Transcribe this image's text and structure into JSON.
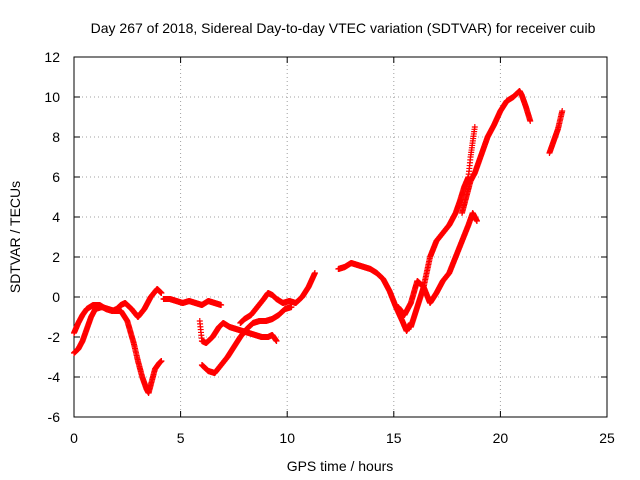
{
  "chart_data": {
    "type": "scatter",
    "title": "Day 267 of 2018, Sidereal Day-to-day VTEC variation (SDTVAR) for receiver cuib",
    "xlabel": "GPS time / hours",
    "ylabel": "SDTVAR / TECUs",
    "xlim": [
      0,
      25
    ],
    "ylim": [
      -6,
      12
    ],
    "xticks": [
      0,
      5,
      10,
      15,
      20,
      25
    ],
    "yticks": [
      -6,
      -4,
      -2,
      0,
      2,
      4,
      6,
      8,
      10,
      12
    ],
    "grid": true,
    "marker": "+",
    "color": "#ff0000",
    "series": [
      {
        "name": "seg1",
        "x": [
          0.0,
          0.2,
          0.4,
          0.6,
          0.9,
          1.2,
          1.5,
          1.8,
          2.0,
          2.2,
          2.4,
          2.7,
          3.0,
          3.3,
          3.6,
          3.9,
          4.1
        ],
        "y": [
          -1.8,
          -1.3,
          -0.9,
          -0.6,
          -0.4,
          -0.4,
          -0.6,
          -0.7,
          -0.6,
          -0.4,
          -0.3,
          -0.6,
          -1.0,
          -0.6,
          0.0,
          0.4,
          0.2
        ]
      },
      {
        "name": "seg2",
        "x": [
          0.0,
          0.2,
          0.4,
          0.6,
          0.8,
          1.0,
          1.3,
          1.6,
          1.9,
          2.2,
          2.5,
          2.8,
          3.0,
          3.2,
          3.4,
          3.5,
          3.6,
          3.8,
          4.0,
          4.1
        ],
        "y": [
          -2.8,
          -2.6,
          -2.2,
          -1.6,
          -1.0,
          -0.6,
          -0.5,
          -0.6,
          -0.7,
          -0.7,
          -1.2,
          -2.3,
          -3.2,
          -4.0,
          -4.6,
          -4.8,
          -4.4,
          -3.6,
          -3.3,
          -3.2
        ]
      },
      {
        "name": "seg3",
        "x": [
          4.2,
          4.5,
          4.8,
          5.1,
          5.4,
          5.7,
          6.0,
          6.3,
          6.6,
          6.9
        ],
        "y": [
          -0.1,
          -0.1,
          -0.2,
          -0.3,
          -0.2,
          -0.3,
          -0.4,
          -0.2,
          -0.3,
          -0.4
        ]
      },
      {
        "name": "seg4",
        "x": [
          5.9,
          6.0,
          6.2,
          6.5,
          6.8,
          7.0,
          7.3,
          7.6,
          7.9,
          8.2,
          8.5,
          8.8,
          9.1,
          9.3,
          9.5
        ],
        "y": [
          -1.2,
          -2.2,
          -2.3,
          -2.0,
          -1.5,
          -1.3,
          -1.5,
          -1.6,
          -1.7,
          -1.8,
          -1.9,
          -2.0,
          -2.0,
          -1.9,
          -2.2
        ]
      },
      {
        "name": "seg5",
        "x": [
          6.0,
          6.3,
          6.6,
          6.9,
          7.2,
          7.5,
          7.8,
          8.1,
          8.4,
          8.7,
          9.0,
          9.3,
          9.6,
          9.9,
          10.2
        ],
        "y": [
          -3.4,
          -3.7,
          -3.8,
          -3.4,
          -3.0,
          -2.5,
          -2.0,
          -1.6,
          -1.3,
          -1.2,
          -1.2,
          -1.1,
          -0.9,
          -0.6,
          -0.5
        ]
      },
      {
        "name": "seg6",
        "x": [
          7.8,
          8.0,
          8.3,
          8.6,
          8.9,
          9.1,
          9.3,
          9.5,
          9.8,
          10.1,
          10.4,
          10.7,
          11.0,
          11.3
        ],
        "y": [
          -1.3,
          -1.1,
          -0.9,
          -0.5,
          -0.1,
          0.2,
          0.1,
          -0.1,
          -0.3,
          -0.2,
          -0.3,
          0.0,
          0.5,
          1.2
        ]
      },
      {
        "name": "seg7",
        "x": [
          12.4,
          12.7,
          13.0,
          13.3,
          13.6,
          13.9,
          14.2,
          14.5,
          14.8,
          15.1,
          15.4,
          15.6,
          15.8
        ],
        "y": [
          1.4,
          1.5,
          1.7,
          1.6,
          1.5,
          1.4,
          1.2,
          0.9,
          0.3,
          -0.5,
          -1.2,
          -1.7,
          -1.3
        ]
      },
      {
        "name": "seg8",
        "x": [
          15.2,
          15.5,
          15.8,
          16.1,
          16.4,
          16.7,
          17.0,
          17.3,
          17.6,
          17.9,
          18.2,
          18.5,
          18.7,
          18.8,
          18.9
        ],
        "y": [
          -0.5,
          -0.9,
          -0.3,
          0.8,
          0.5,
          -0.3,
          0.2,
          0.8,
          1.2,
          2.0,
          2.8,
          3.6,
          4.2,
          4.0,
          3.8
        ]
      },
      {
        "name": "seg9",
        "x": [
          15.8,
          16.1,
          16.4,
          16.7,
          17.0,
          17.3,
          17.6,
          17.9,
          18.1,
          18.3,
          18.5,
          18.6,
          18.8
        ],
        "y": [
          -1.5,
          -0.5,
          0.5,
          2.0,
          2.8,
          3.2,
          3.6,
          4.2,
          4.8,
          5.5,
          6.0,
          7.0,
          8.5
        ]
      },
      {
        "name": "seg10",
        "x": [
          18.2,
          18.4,
          18.6,
          18.8,
          19.0,
          19.2,
          19.4,
          19.7,
          20.0,
          20.3,
          20.6,
          20.9,
          21.0,
          21.2,
          21.4
        ],
        "y": [
          4.2,
          5.0,
          5.8,
          6.2,
          6.8,
          7.4,
          8.0,
          8.6,
          9.3,
          9.8,
          10.0,
          10.3,
          10.1,
          9.5,
          8.8
        ]
      },
      {
        "name": "seg11",
        "x": [
          22.3,
          22.5,
          22.7,
          22.9
        ],
        "y": [
          7.2,
          7.8,
          8.4,
          9.3
        ]
      }
    ]
  }
}
